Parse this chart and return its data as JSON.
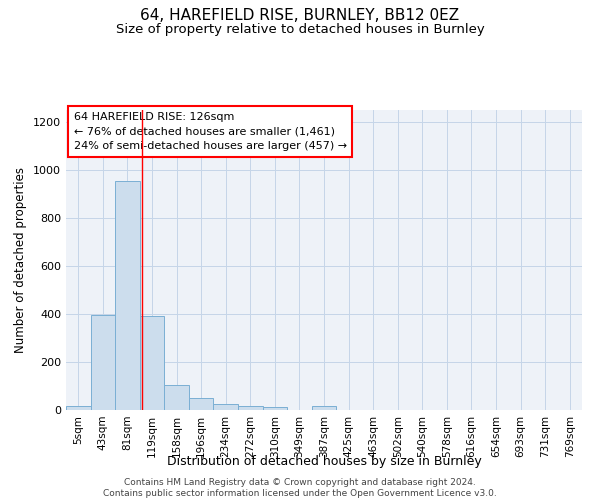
{
  "title": "64, HAREFIELD RISE, BURNLEY, BB12 0EZ",
  "subtitle": "Size of property relative to detached houses in Burnley",
  "xlabel": "Distribution of detached houses by size in Burnley",
  "ylabel": "Number of detached properties",
  "categories": [
    "5sqm",
    "43sqm",
    "81sqm",
    "119sqm",
    "158sqm",
    "196sqm",
    "234sqm",
    "272sqm",
    "310sqm",
    "349sqm",
    "387sqm",
    "425sqm",
    "463sqm",
    "502sqm",
    "540sqm",
    "578sqm",
    "616sqm",
    "654sqm",
    "693sqm",
    "731sqm",
    "769sqm"
  ],
  "values": [
    15,
    395,
    955,
    390,
    105,
    52,
    25,
    15,
    13,
    0,
    15,
    0,
    0,
    0,
    0,
    0,
    0,
    0,
    0,
    0,
    0
  ],
  "bar_color": "#ccdded",
  "bar_edge_color": "#7aafd4",
  "red_line_x": 2.58,
  "annotation_text": "64 HAREFIELD RISE: 126sqm\n← 76% of detached houses are smaller (1,461)\n24% of semi-detached houses are larger (457) →",
  "annotation_box_color": "white",
  "annotation_box_edge_color": "red",
  "ylim": [
    0,
    1250
  ],
  "yticks": [
    0,
    200,
    400,
    600,
    800,
    1000,
    1200
  ],
  "grid_color": "#c5d5e8",
  "background_color": "#eef2f8",
  "footer_text": "Contains HM Land Registry data © Crown copyright and database right 2024.\nContains public sector information licensed under the Open Government Licence v3.0.",
  "title_fontsize": 11,
  "subtitle_fontsize": 9.5,
  "xlabel_fontsize": 9,
  "ylabel_fontsize": 8.5,
  "annotation_fontsize": 8,
  "footer_fontsize": 6.5,
  "tick_fontsize": 7.5,
  "ytick_fontsize": 8
}
